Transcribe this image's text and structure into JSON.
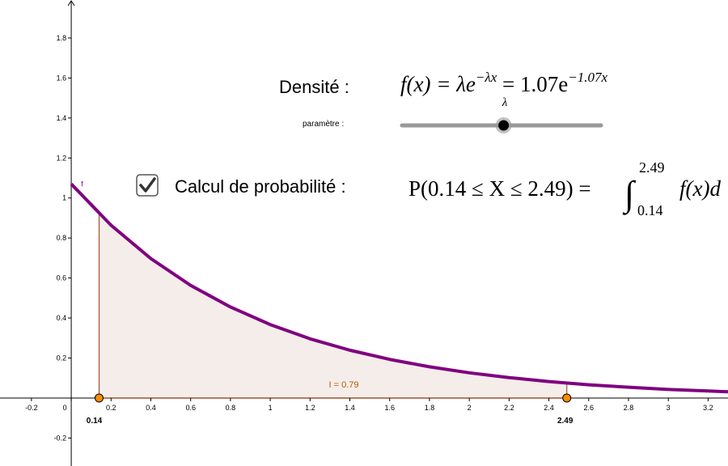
{
  "chart_data": {
    "type": "line",
    "density": {
      "label": "Densité :",
      "lhs": "f(x) = λe",
      "exp1": "−λx",
      "mid": " = 1.07e",
      "exp2": "−1.07x"
    },
    "slider": {
      "name": "λ",
      "label": "paramètre :",
      "value": 1.07,
      "min": 0.1,
      "max": 2
    },
    "probability": {
      "label": "Calcul de probabilité :",
      "checked": true,
      "text": "P(0.14 ≤ X ≤ 2.49) = ",
      "integral": "∫",
      "upper": "2.49",
      "lower": "0.14",
      "tail": "f(x)d"
    },
    "x": [
      0,
      0.2,
      0.4,
      0.6,
      0.8,
      1.0,
      1.2,
      1.4,
      1.6,
      1.8,
      2.0,
      2.2,
      2.4,
      2.6,
      2.8,
      3.0,
      3.2,
      3.3
    ],
    "series": [
      {
        "name": "f",
        "color": "#800080",
        "values": [
          1.07,
          0.864,
          0.697,
          0.563,
          0.455,
          0.367,
          0.296,
          0.239,
          0.193,
          0.156,
          0.126,
          0.102,
          0.082,
          0.066,
          0.054,
          0.043,
          0.035,
          0.031
        ]
      }
    ],
    "area": {
      "from": 0.14,
      "to": 2.49,
      "y_from": 0.921,
      "y_to": 0.075,
      "label": "I = 0.79",
      "color": "#a0522d",
      "point_color": "#ff8c00"
    },
    "xlim": [
      -0.358,
      3.3
    ],
    "ylim": [
      -0.34,
      1.99
    ],
    "xticks": [
      -0.2,
      0,
      0.2,
      0.4,
      0.6,
      0.8,
      1,
      1.2,
      1.4,
      1.6,
      1.8,
      2,
      2.2,
      2.4,
      2.6,
      2.8,
      3,
      3.2
    ],
    "yticks": [
      -0.2,
      0.2,
      0.4,
      0.6,
      0.8,
      1,
      1.2,
      1.4,
      1.6,
      1.8
    ]
  }
}
